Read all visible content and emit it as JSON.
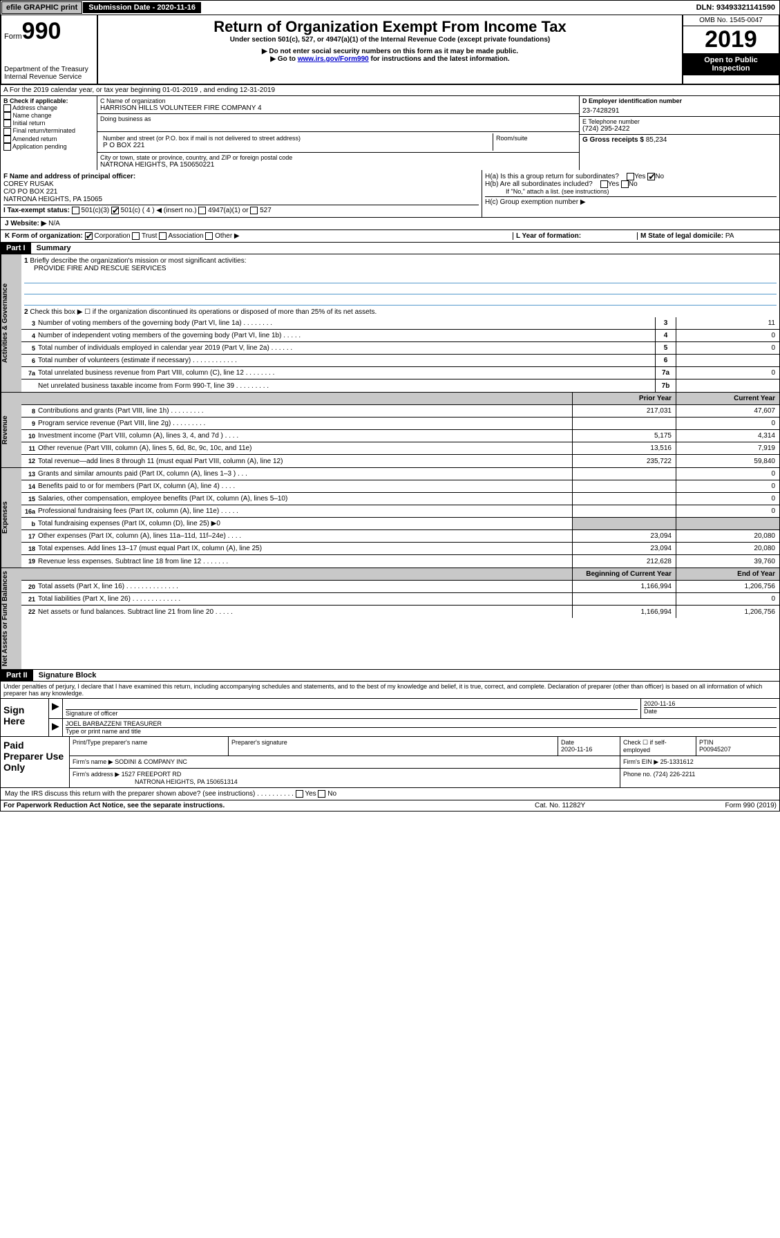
{
  "top": {
    "efile": "efile GRAPHIC print",
    "sub_date_label": "Submission Date - 2020-11-16",
    "dln": "DLN: 93493321141590"
  },
  "header": {
    "form_label": "Form",
    "form_num": "990",
    "dept": "Department of the Treasury",
    "irs": "Internal Revenue Service",
    "title": "Return of Organization Exempt From Income Tax",
    "subtitle": "Under section 501(c), 527, or 4947(a)(1) of the Internal Revenue Code (except private foundations)",
    "note1": "▶ Do not enter social security numbers on this form as it may be made public.",
    "note2_pre": "▶ Go to ",
    "note2_link": "www.irs.gov/Form990",
    "note2_post": " for instructions and the latest information.",
    "omb": "OMB No. 1545-0047",
    "year": "2019",
    "open": "Open to Public Inspection"
  },
  "line_a": "A For the 2019 calendar year, or tax year beginning 01-01-2019    , and ending 12-31-2019",
  "check_b": {
    "label": "B Check if applicable:",
    "opts": [
      "Address change",
      "Name change",
      "Initial return",
      "Final return/terminated",
      "Amended return",
      "Application pending"
    ]
  },
  "c": {
    "name_label": "C Name of organization",
    "name": "HARRISON HILLS VOLUNTEER FIRE COMPANY 4",
    "dba_label": "Doing business as",
    "addr_label": "Number and street (or P.O. box if mail is not delivered to street address)",
    "room_label": "Room/suite",
    "addr": "P O BOX 221",
    "city_label": "City or town, state or province, country, and ZIP or foreign postal code",
    "city": "NATRONA HEIGHTS, PA  150650221"
  },
  "d": {
    "label": "D Employer identification number",
    "value": "23-7428291"
  },
  "e": {
    "label": "E Telephone number",
    "value": "(724) 295-2422"
  },
  "g": {
    "label": "G Gross receipts $",
    "value": "85,234"
  },
  "f": {
    "label": "F Name and address of principal officer:",
    "name": "COREY RUSAK",
    "addr1": "C/O PO BOX 221",
    "addr2": "NATRONA HEIGHTS, PA  15065"
  },
  "h": {
    "a": "H(a)  Is this a group return for subordinates?",
    "b": "H(b)  Are all subordinates included?",
    "b_note": "If \"No,\" attach a list. (see instructions)",
    "c": "H(c)  Group exemption number ▶"
  },
  "i": {
    "label": "I   Tax-exempt status:",
    "c3": "501(c)(3)",
    "c4": "501(c) ( 4 ) ◀ (insert no.)",
    "a1": "4947(a)(1) or",
    "s527": "527"
  },
  "j": {
    "label": "J   Website: ▶",
    "value": "N/A"
  },
  "k": {
    "label": "K Form of organization:",
    "corp": "Corporation",
    "trust": "Trust",
    "assoc": "Association",
    "other": "Other ▶"
  },
  "l": {
    "label": "L Year of formation:",
    "value": ""
  },
  "m": {
    "label": "M State of legal domicile:",
    "value": "PA"
  },
  "part1": {
    "hdr": "Part I",
    "title": "Summary"
  },
  "summary": {
    "l1": "Briefly describe the organization's mission or most significant activities:",
    "mission": "PROVIDE FIRE AND RESCUE SERVICES",
    "l2": "Check this box ▶ ☐  if the organization discontinued its operations or disposed of more than 25% of its net assets.",
    "lines": [
      {
        "n": "3",
        "t": "Number of voting members of the governing body (Part VI, line 1a)  .   .   .   .   .   .   .   .",
        "b": "3",
        "v": "11"
      },
      {
        "n": "4",
        "t": "Number of independent voting members of the governing body (Part VI, line 1b)  .   .   .   .   .",
        "b": "4",
        "v": "0"
      },
      {
        "n": "5",
        "t": "Total number of individuals employed in calendar year 2019 (Part V, line 2a)  .   .   .   .   .   .",
        "b": "5",
        "v": "0"
      },
      {
        "n": "6",
        "t": "Total number of volunteers (estimate if necessary)  .   .   .   .   .   .   .   .   .   .   .   .",
        "b": "6",
        "v": ""
      },
      {
        "n": "7a",
        "t": "Total unrelated business revenue from Part VIII, column (C), line 12  .   .   .   .   .   .   .   .",
        "b": "7a",
        "v": "0"
      },
      {
        "n": "",
        "t": "Net unrelated business taxable income from Form 990-T, line 39  .   .   .   .   .   .   .   .   .",
        "b": "7b",
        "v": ""
      }
    ],
    "col_py": "Prior Year",
    "col_cy": "Current Year",
    "rev_lines": [
      {
        "n": "8",
        "t": "Contributions and grants (Part VIII, line 1h)  .   .   .   .   .   .   .   .   .",
        "py": "217,031",
        "cy": "47,607"
      },
      {
        "n": "9",
        "t": "Program service revenue (Part VIII, line 2g)  .   .   .   .   .   .   .   .   .",
        "py": "",
        "cy": "0"
      },
      {
        "n": "10",
        "t": "Investment income (Part VIII, column (A), lines 3, 4, and 7d )  .   .   .   .",
        "py": "5,175",
        "cy": "4,314"
      },
      {
        "n": "11",
        "t": "Other revenue (Part VIII, column (A), lines 5, 6d, 8c, 9c, 10c, and 11e)",
        "py": "13,516",
        "cy": "7,919"
      },
      {
        "n": "12",
        "t": "Total revenue—add lines 8 through 11 (must equal Part VIII, column (A), line 12)",
        "py": "235,722",
        "cy": "59,840"
      }
    ],
    "exp_lines": [
      {
        "n": "13",
        "t": "Grants and similar amounts paid (Part IX, column (A), lines 1–3 )  .   .   .",
        "py": "",
        "cy": "0"
      },
      {
        "n": "14",
        "t": "Benefits paid to or for members (Part IX, column (A), line 4)  .   .   .   .",
        "py": "",
        "cy": "0"
      },
      {
        "n": "15",
        "t": "Salaries, other compensation, employee benefits (Part IX, column (A), lines 5–10)",
        "py": "",
        "cy": "0"
      },
      {
        "n": "16a",
        "t": "Professional fundraising fees (Part IX, column (A), line 11e)  .   .   .   .   .",
        "py": "",
        "cy": "0"
      },
      {
        "n": "b",
        "t": "Total fundraising expenses (Part IX, column (D), line 25) ▶0",
        "py": "SHADE",
        "cy": "SHADE"
      },
      {
        "n": "17",
        "t": "Other expenses (Part IX, column (A), lines 11a–11d, 11f–24e)  .   .   .   .",
        "py": "23,094",
        "cy": "20,080"
      },
      {
        "n": "18",
        "t": "Total expenses. Add lines 13–17 (must equal Part IX, column (A), line 25)",
        "py": "23,094",
        "cy": "20,080"
      },
      {
        "n": "19",
        "t": "Revenue less expenses. Subtract line 18 from line 12  .   .   .   .   .   .   .",
        "py": "212,628",
        "cy": "39,760"
      }
    ],
    "col_boy": "Beginning of Current Year",
    "col_eoy": "End of Year",
    "net_lines": [
      {
        "n": "20",
        "t": "Total assets (Part X, line 16)  .   .   .   .   .   .   .   .   .   .   .   .   .   .",
        "py": "1,166,994",
        "cy": "1,206,756"
      },
      {
        "n": "21",
        "t": "Total liabilities (Part X, line 26)  .   .   .   .   .   .   .   .   .   .   .   .   .",
        "py": "",
        "cy": "0"
      },
      {
        "n": "22",
        "t": "Net assets or fund balances. Subtract line 21 from line 20  .   .   .   .   .",
        "py": "1,166,994",
        "cy": "1,206,756"
      }
    ]
  },
  "side_labels": {
    "gov": "Activities & Governance",
    "rev": "Revenue",
    "exp": "Expenses",
    "net": "Net Assets or Fund Balances"
  },
  "part2": {
    "hdr": "Part II",
    "title": "Signature Block"
  },
  "perjury": "Under penalties of perjury, I declare that I have examined this return, including accompanying schedules and statements, and to the best of my knowledge and belief, it is true, correct, and complete. Declaration of preparer (other than officer) is based on all information of which preparer has any knowledge.",
  "sign": {
    "here": "Sign Here",
    "sig_label": "Signature of officer",
    "date": "2020-11-16",
    "date_label": "Date",
    "name": "JOEL BARBAZZENI  TREASURER",
    "name_label": "Type or print name and title"
  },
  "paid": {
    "title": "Paid Preparer Use Only",
    "h1": "Print/Type preparer's name",
    "h2": "Preparer's signature",
    "h3": "Date",
    "h3v": "2020-11-16",
    "h4": "Check ☐ if self-employed",
    "h5": "PTIN",
    "h5v": "P00945207",
    "firm_label": "Firm's name    ▶",
    "firm": "SODINI & COMPANY INC",
    "ein_label": "Firm's EIN ▶",
    "ein": "25-1331612",
    "addr_label": "Firm's address ▶",
    "addr1": "1527 FREEPORT RD",
    "addr2": "NATRONA HEIGHTS, PA  150651314",
    "phone_label": "Phone no.",
    "phone": "(724) 226-2211"
  },
  "discuss": "May the IRS discuss this return with the preparer shown above? (see instructions)   .   .   .   .   .   .   .   .   .   .",
  "footer": {
    "f1": "For Paperwork Reduction Act Notice, see the separate instructions.",
    "f2": "Cat. No. 11282Y",
    "f3": "Form 990 (2019)"
  },
  "yes": "Yes",
  "no": "No"
}
